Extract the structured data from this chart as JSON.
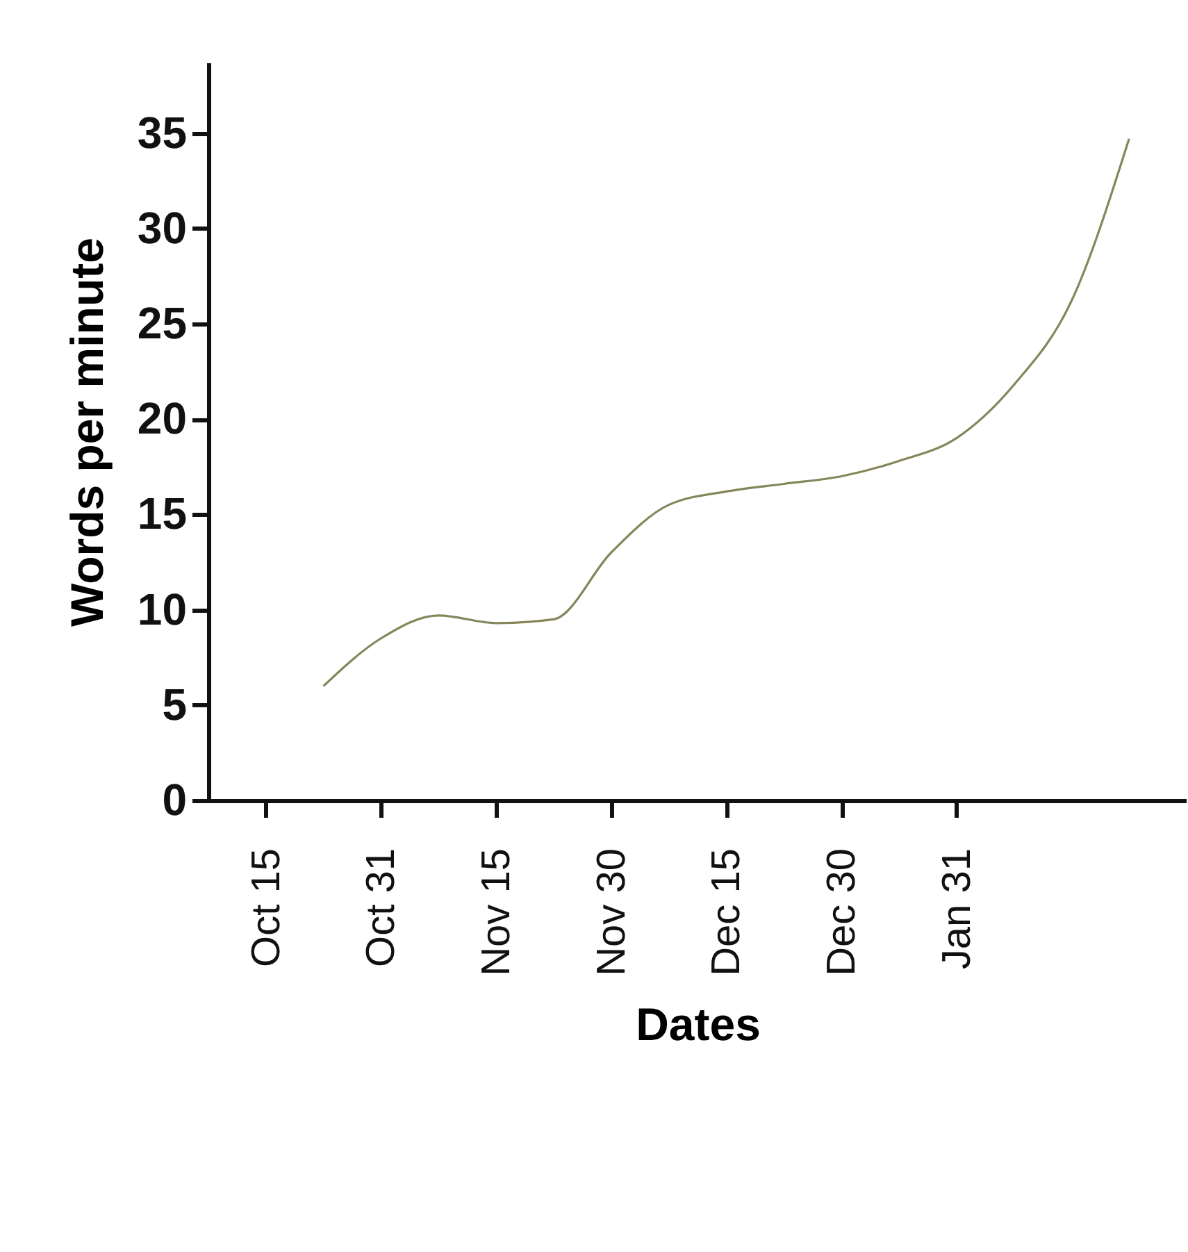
{
  "chart_data": {
    "type": "line",
    "xlabel": "Dates",
    "ylabel": "Words per minute",
    "categories": [
      "Oct 15",
      null,
      "Oct 31",
      null,
      "Nov 15",
      null,
      "Nov 30",
      null,
      "Dec 15",
      null,
      "Dec 30",
      null,
      "Jan 31",
      null,
      null,
      null
    ],
    "series": [
      {
        "color": "#85865a",
        "values": [
          null,
          6.0,
          8.5,
          9.7,
          9.3,
          9.5,
          13.0,
          15.5,
          16.2,
          16.6,
          17.0,
          17.8,
          19.0,
          21.8,
          26.2,
          34.7
        ]
      }
    ],
    "ylim": [
      0,
      38.7
    ],
    "yticks": [
      0,
      5,
      10,
      15,
      20,
      25,
      30,
      35
    ],
    "grid": false,
    "marker": "none",
    "line_style": "solid"
  }
}
